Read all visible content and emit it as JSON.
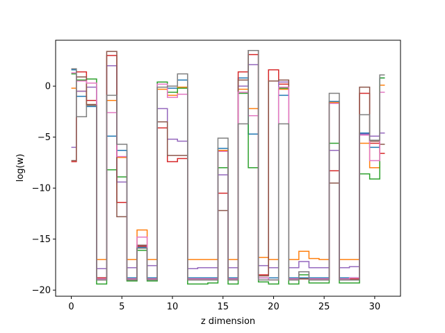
{
  "chart_data": {
    "type": "line",
    "drawstyle": "steps-mid",
    "xlabel": "z dimension",
    "ylabel": "log(w)",
    "xlim": [
      -1.55,
      32.55
    ],
    "ylim": [
      -20.6,
      4.5
    ],
    "xticks": [
      0,
      5,
      10,
      15,
      20,
      25,
      30
    ],
    "yticks": [
      -20,
      -15,
      -10,
      -5,
      0
    ],
    "grid": false,
    "legend": "none",
    "x": [
      0,
      1,
      2,
      3,
      4,
      5,
      6,
      7,
      8,
      9,
      10,
      11,
      12,
      13,
      14,
      15,
      16,
      17,
      18,
      19,
      20,
      21,
      22,
      23,
      24,
      25,
      26,
      27,
      28,
      29,
      30,
      31
    ],
    "series": [
      {
        "color": "#1f77b4",
        "values": [
          1.6,
          -1.0,
          -2.0,
          -18.8,
          -4.9,
          -6.3,
          -18.8,
          -15.8,
          -18.8,
          0.4,
          -0.2,
          0.6,
          -18.8,
          -18.8,
          -18.8,
          -6.1,
          -18.8,
          0.8,
          -4.7,
          -18.8,
          -18.8,
          -0.9,
          -18.8,
          -18.8,
          -18.8,
          -18.8,
          -1.5,
          -18.8,
          -18.8,
          -4.6,
          -6.0,
          0.8
        ]
      },
      {
        "color": "#ff7f0e",
        "values": [
          -0.2,
          -0.5,
          -1.8,
          -17.0,
          -1.4,
          -7.0,
          -17.0,
          -14.1,
          -17.0,
          -0.3,
          -0.9,
          -0.1,
          -17.0,
          -17.0,
          -17.0,
          -6.3,
          -17.0,
          -0.3,
          -2.2,
          -16.8,
          -17.0,
          -0.3,
          -17.0,
          -16.2,
          -16.9,
          -17.0,
          -1.6,
          -17.0,
          -17.0,
          -5.6,
          -8.0,
          0.1
        ]
      },
      {
        "color": "#2ca02c",
        "values": [
          1.2,
          0.6,
          0.7,
          -19.4,
          -8.2,
          -8.9,
          -19.1,
          -16.1,
          -19.1,
          0.4,
          -0.6,
          -0.2,
          -19.4,
          -19.4,
          -19.3,
          -8.0,
          -19.4,
          -0.7,
          -8.0,
          -19.2,
          -19.4,
          -0.2,
          -19.4,
          -18.5,
          -19.3,
          -19.3,
          -5.6,
          -19.3,
          -19.3,
          -8.6,
          -9.1,
          0.8
        ]
      },
      {
        "color": "#d62728",
        "values": [
          -7.4,
          1.4,
          -1.4,
          -18.8,
          3.0,
          -11.4,
          -18.9,
          -15.7,
          -18.9,
          -4.1,
          -7.4,
          -7.1,
          -18.9,
          -18.9,
          -18.9,
          -10.5,
          -18.9,
          1.4,
          3.1,
          -18.5,
          1.6,
          0.2,
          -18.9,
          -18.9,
          -18.9,
          -18.9,
          -8.3,
          -18.9,
          -18.9,
          -0.7,
          -5.6,
          -6.6
        ]
      },
      {
        "color": "#9467bd",
        "values": [
          -6.0,
          -0.5,
          -0.1,
          -17.9,
          2.0,
          -9.4,
          -17.8,
          -15.6,
          -17.6,
          -2.2,
          -5.2,
          -5.4,
          -17.9,
          -17.8,
          -17.8,
          -8.7,
          -17.8,
          0.0,
          2.1,
          -17.6,
          -17.8,
          0.4,
          -17.8,
          -17.2,
          -17.8,
          -17.8,
          -6.3,
          -17.8,
          -17.7,
          -4.7,
          -4.9,
          -4.6
        ]
      },
      {
        "color": "#8c564b",
        "values": [
          -7.3,
          0.9,
          -1.8,
          -19.0,
          3.4,
          -12.8,
          -19.0,
          -15.6,
          -18.9,
          -3.5,
          -6.8,
          -6.8,
          -19.0,
          -19.0,
          -19.0,
          -12.2,
          -19.0,
          0.6,
          3.5,
          -18.6,
          0.5,
          0.6,
          -19.0,
          -18.9,
          -19.0,
          -19.0,
          -9.5,
          -19.0,
          -19.0,
          -0.1,
          -5.4,
          -5.7
        ]
      },
      {
        "color": "#e377c2",
        "values": [
          1.3,
          0.5,
          0.3,
          -18.9,
          -2.6,
          -6.9,
          -18.9,
          -14.8,
          -18.9,
          0.2,
          -1.1,
          -0.8,
          -18.9,
          -18.9,
          -18.9,
          -6.4,
          -18.9,
          -0.6,
          -2.9,
          -18.8,
          -19.0,
          -0.1,
          -18.9,
          -18.2,
          -18.9,
          -18.9,
          -1.7,
          -18.9,
          -18.8,
          -4.8,
          -7.3,
          -0.6
        ]
      },
      {
        "color": "#7f7f7f",
        "values": [
          1.7,
          -3.0,
          -1.9,
          -19.0,
          -0.9,
          -5.7,
          -19.0,
          -15.9,
          -19.0,
          -0.1,
          0.0,
          1.2,
          -19.0,
          -19.0,
          -19.0,
          -5.1,
          -19.0,
          -3.7,
          3.5,
          -19.0,
          -19.0,
          -3.7,
          -19.0,
          -18.2,
          -19.0,
          -19.0,
          -0.7,
          -19.0,
          -19.0,
          -2.8,
          -5.3,
          1.1
        ]
      }
    ]
  }
}
